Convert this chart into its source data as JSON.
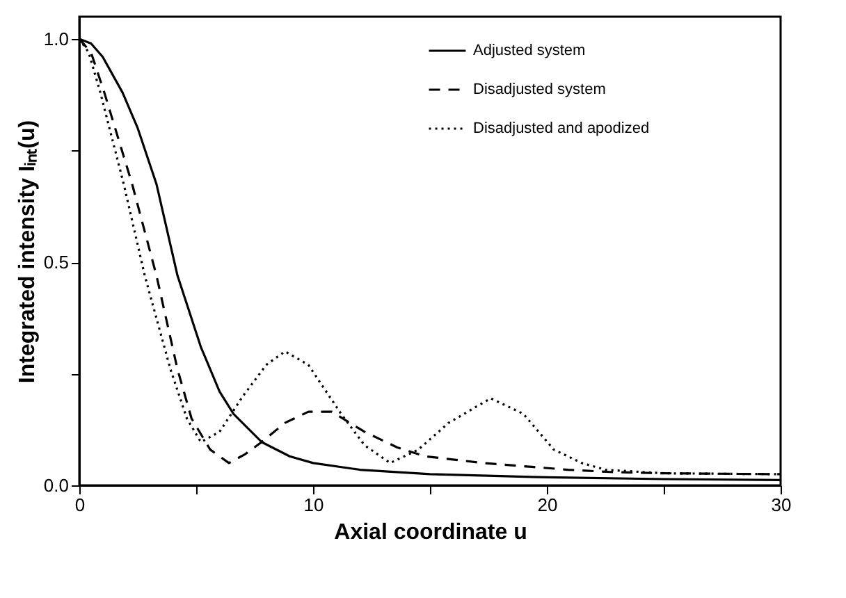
{
  "chart_data": {
    "type": "line",
    "xlabel": "Axial coordinate u",
    "ylabel": "Integrated intensity Iᵢₙₜ(u)",
    "xlim": [
      0,
      30
    ],
    "ylim": [
      0,
      1.05
    ],
    "xticks": [
      0,
      {
        "value": 5,
        "label": null
      },
      10,
      {
        "value": 15,
        "label": null
      },
      20,
      {
        "value": 25,
        "label": null
      },
      30
    ],
    "yticks": [
      {
        "value": 0,
        "label": "0.0"
      },
      {
        "value": 0.25,
        "label": null
      },
      {
        "value": 0.5,
        "label": "0.5"
      },
      {
        "value": 0.75,
        "label": null
      },
      {
        "value": 1,
        "label": "1.0"
      }
    ],
    "grid": false,
    "legend": "top right",
    "marker": "none",
    "series": [
      {
        "name": "Adjusted system",
        "color": "#000000",
        "line_style": "solid",
        "x": [
          0,
          0.5,
          1,
          1.85,
          2.5,
          3.3,
          4.2,
          5.2,
          6,
          6.6,
          7.8,
          9,
          10,
          12,
          15,
          20,
          25,
          30
        ],
        "values": [
          1,
          0.99,
          0.96,
          0.88,
          0.8,
          0.675,
          0.47,
          0.31,
          0.21,
          0.16,
          0.097,
          0.065,
          0.05,
          0.035,
          0.025,
          0.018,
          0.014,
          0.012
        ]
      },
      {
        "name": "Disadjusted system",
        "color": "#000000",
        "line_style": "dashed",
        "x": [
          0,
          0.5,
          1.07,
          2.26,
          3.3,
          4.2,
          4.8,
          5.6,
          6.4,
          7.1,
          7.8,
          8.8,
          9.8,
          10.8,
          12.2,
          13.6,
          14.8,
          17.3,
          20.9,
          22.7,
          25,
          30
        ],
        "values": [
          1,
          0.97,
          0.88,
          0.675,
          0.47,
          0.26,
          0.15,
          0.08,
          0.05,
          0.07,
          0.097,
          0.14,
          0.165,
          0.165,
          0.12,
          0.085,
          0.065,
          0.05,
          0.035,
          0.03,
          0.027,
          0.025
        ]
      },
      {
        "name": "Disadjusted and apodized",
        "color": "#000000",
        "line_style": "dotted",
        "x": [
          0,
          0.4,
          0.9,
          1.9,
          2.8,
          3.9,
          4.6,
          5.2,
          6,
          7,
          8,
          8.8,
          9.8,
          11.2,
          12.2,
          13.3,
          14.5,
          15.8,
          17.6,
          19,
          20.3,
          21.5,
          22.5,
          25,
          30
        ],
        "values": [
          1,
          0.97,
          0.88,
          0.675,
          0.47,
          0.26,
          0.15,
          0.097,
          0.12,
          0.2,
          0.27,
          0.3,
          0.27,
          0.16,
          0.09,
          0.05,
          0.08,
          0.14,
          0.195,
          0.16,
          0.08,
          0.05,
          0.035,
          0.027,
          0.025
        ]
      }
    ]
  }
}
